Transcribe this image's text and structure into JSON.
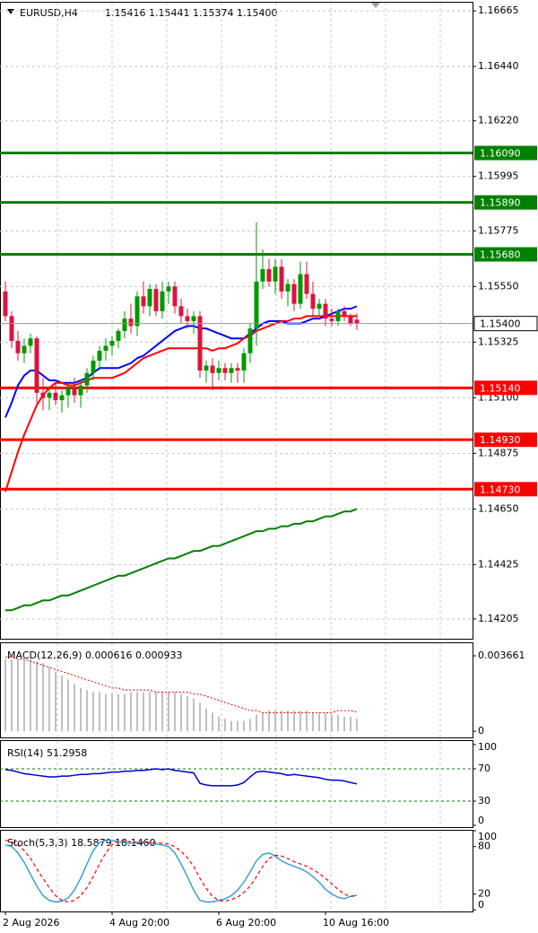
{
  "chart_data": [
    {
      "type": "candlestick",
      "title": "EURUSD,H4",
      "subtitle": "1.15416 1.15441 1.15374 1.15400",
      "categories": [
        "2 Aug 2026",
        null,
        null,
        null,
        null,
        null,
        null,
        null,
        null,
        null,
        null,
        null,
        null,
        null,
        null,
        null,
        null,
        "4 Aug 20:00",
        null,
        null,
        null,
        null,
        null,
        null,
        null,
        null,
        null,
        null,
        null,
        null,
        null,
        null,
        null,
        null,
        "6 Aug 20:00",
        null,
        null,
        null,
        null,
        null,
        null,
        null,
        null,
        null,
        null,
        null,
        null,
        null,
        null,
        null,
        null,
        "10 Aug 16:00",
        null,
        null,
        null,
        null,
        null
      ],
      "open": [
        1.1553,
        1.1543,
        1.1533,
        1.1528,
        1.1531,
        1.1534,
        1.1512,
        1.151,
        1.1512,
        1.1509,
        1.1511,
        1.1514,
        1.1511,
        1.1515,
        1.152,
        1.1525,
        1.1529,
        1.1531,
        1.1533,
        1.1537,
        1.1542,
        1.1539,
        1.1551,
        1.1547,
        1.1554,
        1.1545,
        1.1553,
        1.1555,
        1.1547,
        1.1543,
        1.1541,
        1.1543,
        1.1521,
        1.1523,
        1.152,
        1.1522,
        1.152,
        1.1522,
        1.1521,
        1.1528,
        1.1538,
        1.1557,
        1.1562,
        1.1557,
        1.1563,
        1.1553,
        1.1556,
        1.1548,
        1.156,
        1.1552,
        1.1546,
        1.1548,
        1.1542,
        1.1541,
        1.1545,
        1.1543,
        1.15416
      ],
      "high": [
        1.1557,
        1.1545,
        1.1537,
        1.1534,
        1.1536,
        1.1535,
        1.1518,
        1.1514,
        1.1516,
        1.1513,
        1.1516,
        1.1518,
        1.1517,
        1.1522,
        1.1527,
        1.1531,
        1.1534,
        1.1535,
        1.1538,
        1.1545,
        1.1548,
        1.1553,
        1.1557,
        1.1556,
        1.1556,
        1.1557,
        1.1557,
        1.1557,
        1.155,
        1.1546,
        1.1545,
        1.1545,
        1.1525,
        1.1526,
        1.1525,
        1.1524,
        1.1524,
        1.1524,
        1.153,
        1.154,
        1.1581,
        1.157,
        1.1566,
        1.1566,
        1.1566,
        1.1558,
        1.1558,
        1.1565,
        1.1565,
        1.1557,
        1.155,
        1.155,
        1.1546,
        1.1546,
        1.1547,
        1.1544,
        1.15441
      ],
      "low": [
        1.1541,
        1.153,
        1.1525,
        1.1524,
        1.1528,
        1.1508,
        1.1505,
        1.1505,
        1.1507,
        1.1504,
        1.1506,
        1.1508,
        1.1506,
        1.1512,
        1.1517,
        1.1521,
        1.1525,
        1.1527,
        1.153,
        1.1534,
        1.1536,
        1.1535,
        1.1544,
        1.1543,
        1.1543,
        1.1542,
        1.1548,
        1.1544,
        1.154,
        1.1538,
        1.1536,
        1.1518,
        1.1516,
        1.1513,
        1.1517,
        1.1517,
        1.1516,
        1.1516,
        1.1516,
        1.1524,
        1.1531,
        1.1554,
        1.1555,
        1.1552,
        1.155,
        1.1547,
        1.1545,
        1.1546,
        1.155,
        1.1543,
        1.1543,
        1.1539,
        1.1539,
        1.1539,
        1.1541,
        1.1539,
        1.15374
      ],
      "close": [
        1.1543,
        1.1533,
        1.1528,
        1.1531,
        1.1534,
        1.1512,
        1.151,
        1.1512,
        1.1509,
        1.1511,
        1.1514,
        1.1511,
        1.1515,
        1.152,
        1.1525,
        1.1529,
        1.1531,
        1.1533,
        1.1537,
        1.1542,
        1.1539,
        1.1551,
        1.1547,
        1.1554,
        1.1545,
        1.1553,
        1.1555,
        1.1547,
        1.1543,
        1.1541,
        1.1543,
        1.1521,
        1.1523,
        1.152,
        1.1522,
        1.152,
        1.1522,
        1.1521,
        1.1528,
        1.1538,
        1.1557,
        1.1562,
        1.1557,
        1.1563,
        1.1553,
        1.1556,
        1.1548,
        1.156,
        1.1552,
        1.1546,
        1.1548,
        1.1542,
        1.1541,
        1.1545,
        1.1543,
        1.154,
        1.154
      ],
      "up_color": "#009900",
      "down_color": "#dc143c",
      "series": [
        {
          "color": "#0000ff",
          "values": [
            1.1502,
            1.1508,
            1.1515,
            1.1519,
            1.1521,
            1.1521,
            1.1519,
            1.1517,
            1.1517,
            1.1516,
            1.1516,
            1.1516,
            1.1517,
            1.1518,
            1.152,
            1.1522,
            1.1522,
            1.1522,
            1.1522,
            1.1523,
            1.1524,
            1.1526,
            1.1527,
            1.1529,
            1.1531,
            1.1533,
            1.1535,
            1.1537,
            1.1538,
            1.1539,
            1.1539,
            1.1538,
            1.1538,
            1.1537,
            1.1536,
            1.1535,
            1.1534,
            1.1534,
            1.1534,
            1.1536,
            1.1538,
            1.154,
            1.1541,
            1.1541,
            1.1541,
            1.154,
            1.154,
            1.154,
            1.1541,
            1.1542,
            1.1542,
            1.1543,
            1.1544,
            1.1545,
            1.1546,
            1.1546,
            1.1547
          ]
        },
        {
          "color": "#ff0000",
          "values": [
            1.1472,
            1.148,
            1.1488,
            1.1495,
            1.1501,
            1.1507,
            1.1511,
            1.1514,
            1.1516,
            1.1516,
            1.1515,
            1.1515,
            1.1516,
            1.1517,
            1.1518,
            1.1518,
            1.1518,
            1.1518,
            1.1519,
            1.152,
            1.1522,
            1.1524,
            1.1526,
            1.1527,
            1.1528,
            1.1529,
            1.153,
            1.153,
            1.153,
            1.153,
            1.153,
            1.153,
            1.153,
            1.1529,
            1.153,
            1.153,
            1.1531,
            1.1532,
            1.1534,
            1.1535,
            1.1537,
            1.1538,
            1.1539,
            1.154,
            1.1541,
            1.1541,
            1.1542,
            1.1542,
            1.1543,
            1.1543,
            1.1543,
            1.1543,
            1.1543,
            1.1543,
            1.1543,
            1.1543,
            1.1543
          ]
        },
        {
          "color": "#008000",
          "values": [
            1.1424,
            1.1424,
            1.1425,
            1.1426,
            1.1426,
            1.1427,
            1.1428,
            1.1428,
            1.1429,
            1.143,
            1.143,
            1.1431,
            1.1432,
            1.1433,
            1.1434,
            1.1435,
            1.1436,
            1.1437,
            1.1438,
            1.1438,
            1.1439,
            1.144,
            1.1441,
            1.1442,
            1.1443,
            1.1444,
            1.1445,
            1.1445,
            1.1446,
            1.1447,
            1.1448,
            1.1448,
            1.1449,
            1.145,
            1.145,
            1.1451,
            1.1452,
            1.1453,
            1.1454,
            1.1455,
            1.1456,
            1.1456,
            1.1457,
            1.1457,
            1.1458,
            1.1458,
            1.1459,
            1.1459,
            1.146,
            1.146,
            1.1461,
            1.1462,
            1.1462,
            1.1463,
            1.1464,
            1.1464,
            1.1465
          ]
        }
      ],
      "levels": [
        {
          "value": 1.1609,
          "label": "1.16090",
          "color": "#008000"
        },
        {
          "value": 1.1589,
          "label": "1.15890",
          "color": "#008000"
        },
        {
          "value": 1.1568,
          "label": "1.15680",
          "color": "#008000"
        },
        {
          "value": 1.1514,
          "label": "1.15140",
          "color": "#ff0000"
        },
        {
          "value": 1.1493,
          "label": "1.14930",
          "color": "#ff0000"
        },
        {
          "value": 1.1473,
          "label": "1.14730",
          "color": "#ff0000"
        }
      ],
      "last_price": {
        "value": 1.154,
        "label": "1.15400"
      },
      "ylim": [
        1.14125,
        1.16698
      ],
      "yticks": [
        1.16665,
        {
          "value": 1.1644,
          "label": "1.16440"
        },
        {
          "value": 1.1622,
          "label": "1.16220"
        },
        1.15995,
        1.15775,
        {
          "value": 1.1555,
          "label": "1.15550"
        },
        1.15325,
        {
          "value": 1.151,
          "label": "1.15100"
        },
        1.14875,
        {
          "value": 1.1465,
          "label": "1.14650"
        },
        1.14425,
        1.14205
      ],
      "grid": true
    },
    {
      "type": "macd",
      "label": "MACD(12,26,9) 0.000616 0.000933",
      "color": "#c0c0c0",
      "signal_color": "#ff0000",
      "values": [
        0.0035,
        0.0035,
        0.0035,
        0.0035,
        0.0035,
        0.0034,
        0.0033,
        0.0031,
        0.0029,
        0.0027,
        0.0025,
        0.0023,
        0.0021,
        0.002,
        0.0019,
        0.0019,
        0.0018,
        0.0018,
        0.0018,
        0.0018,
        0.0019,
        0.0019,
        0.0019,
        0.0019,
        0.0019,
        0.0019,
        0.0019,
        0.0019,
        0.0018,
        0.0017,
        0.0016,
        0.0014,
        0.0011,
        0.0009,
        0.0007,
        0.0006,
        0.0005,
        0.0005,
        0.0005,
        0.0006,
        0.0008,
        0.0009,
        0.001,
        0.001,
        0.001,
        0.001,
        0.001,
        0.001,
        0.001,
        0.0009,
        0.0009,
        0.0009,
        0.0008,
        0.0008,
        0.0007,
        0.0007,
        0.000616
      ],
      "signal": [
        0.0036,
        0.0036,
        0.0035,
        0.0035,
        0.0034,
        0.0033,
        0.0032,
        0.0031,
        0.003,
        0.0029,
        0.0028,
        0.0027,
        0.0026,
        0.0025,
        0.0024,
        0.0023,
        0.0022,
        0.0021,
        0.0021,
        0.002,
        0.002,
        0.002,
        0.002,
        0.002,
        0.0019,
        0.0019,
        0.0019,
        0.0019,
        0.0019,
        0.0019,
        0.0018,
        0.0018,
        0.0017,
        0.0016,
        0.0015,
        0.0014,
        0.0013,
        0.0012,
        0.0011,
        0.001,
        0.001,
        0.0009,
        0.0009,
        0.0009,
        0.0009,
        0.0009,
        0.0009,
        0.0009,
        0.0009,
        0.0009,
        0.0009,
        0.0009,
        0.0009,
        0.001,
        0.001,
        0.001,
        0.000933
      ],
      "ylim": [
        -0.0003,
        0.00427
      ],
      "yticks": [
        0.003661,
        0
      ]
    },
    {
      "type": "rsi",
      "label": "RSI(14) 51.2958",
      "color": "#0000cd",
      "level_color": "#008000",
      "levels": [
        70,
        30
      ],
      "values": [
        69,
        68,
        66,
        64,
        63,
        62,
        61,
        60,
        60,
        61,
        61,
        62,
        63,
        63,
        64,
        64,
        65,
        66,
        66,
        67,
        67,
        68,
        68,
        69,
        70,
        69,
        70,
        68,
        67,
        66,
        65,
        52,
        50,
        49,
        49,
        49,
        49,
        50,
        53,
        60,
        66,
        67,
        66,
        65,
        64,
        62,
        63,
        62,
        61,
        60,
        59,
        57,
        56,
        56,
        55,
        53,
        51.2958
      ],
      "ylim": [
        -2.2,
        104.4
      ],
      "yticks": [
        100,
        70,
        30,
        0
      ]
    },
    {
      "type": "stoch",
      "label": "Stoch(5,3,3) 18.5879 18.1460",
      "color": "#3aa0d8",
      "signal_color": "#ff0000",
      "values": [
        82,
        80,
        72,
        60,
        45,
        30,
        18,
        12,
        10,
        11,
        15,
        25,
        40,
        58,
        75,
        85,
        88,
        88,
        86,
        85,
        84,
        85,
        86,
        84,
        83,
        82,
        80,
        72,
        58,
        42,
        25,
        12,
        10,
        10,
        12,
        14,
        18,
        25,
        35,
        48,
        62,
        70,
        72,
        68,
        62,
        58,
        55,
        52,
        48,
        42,
        35,
        26,
        20,
        16,
        14,
        17,
        18.5879
      ],
      "signal": [
        88,
        86,
        82,
        75,
        65,
        52,
        40,
        28,
        18,
        12,
        10,
        12,
        18,
        28,
        42,
        58,
        72,
        82,
        87,
        87,
        86,
        85,
        85,
        85,
        85,
        84,
        83,
        80,
        74,
        66,
        55,
        40,
        27,
        17,
        12,
        11,
        13,
        16,
        22,
        30,
        42,
        55,
        65,
        69,
        68,
        65,
        61,
        58,
        55,
        51,
        46,
        40,
        33,
        26,
        20,
        17,
        18.146
      ],
      "ylim": [
        -2,
        100
      ],
      "yticks": [
        100,
        80,
        20,
        0
      ]
    }
  ]
}
